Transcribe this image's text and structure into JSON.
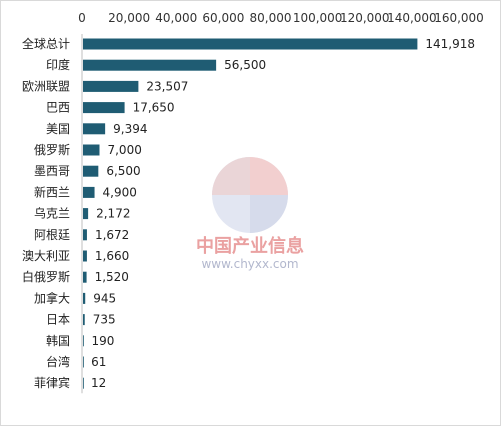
{
  "chart_data": {
    "type": "bar",
    "orientation": "horizontal",
    "categories": [
      "全球总计",
      "印度",
      "欧洲联盟",
      "巴西",
      "美国",
      "俄罗斯",
      "墨西哥",
      "新西兰",
      "乌克兰",
      "阿根廷",
      "澳大利亚",
      "白俄罗斯",
      "加拿大",
      "日本",
      "韩国",
      "台湾",
      "菲律宾"
    ],
    "values": [
      141918,
      56500,
      23507,
      17650,
      9394,
      7000,
      6500,
      4900,
      2172,
      1672,
      1660,
      1520,
      945,
      735,
      190,
      61,
      12
    ],
    "data_labels": [
      "141,918",
      "56,500",
      "23,507",
      "17,650",
      "9,394",
      "7,000",
      "6,500",
      "4,900",
      "2,172",
      "1,672",
      "1,660",
      "1,520",
      "945",
      "735",
      "190",
      "61",
      "12"
    ],
    "x_ticks": [
      "0",
      "20,000",
      "40,000",
      "60,000",
      "80,000",
      "100,000",
      "120,000",
      "140,000",
      "160,000"
    ],
    "xlim": [
      0,
      160000
    ],
    "x_axis_position": "top",
    "grid": false,
    "legend": "none",
    "bar_color": "#1f5c73",
    "title": "",
    "xlabel": "",
    "ylabel": ""
  },
  "watermark": {
    "text": "中国产业信息",
    "url": "www.chyxx.com",
    "text_color": "#e58a8a",
    "url_color": "#aab0c8"
  }
}
